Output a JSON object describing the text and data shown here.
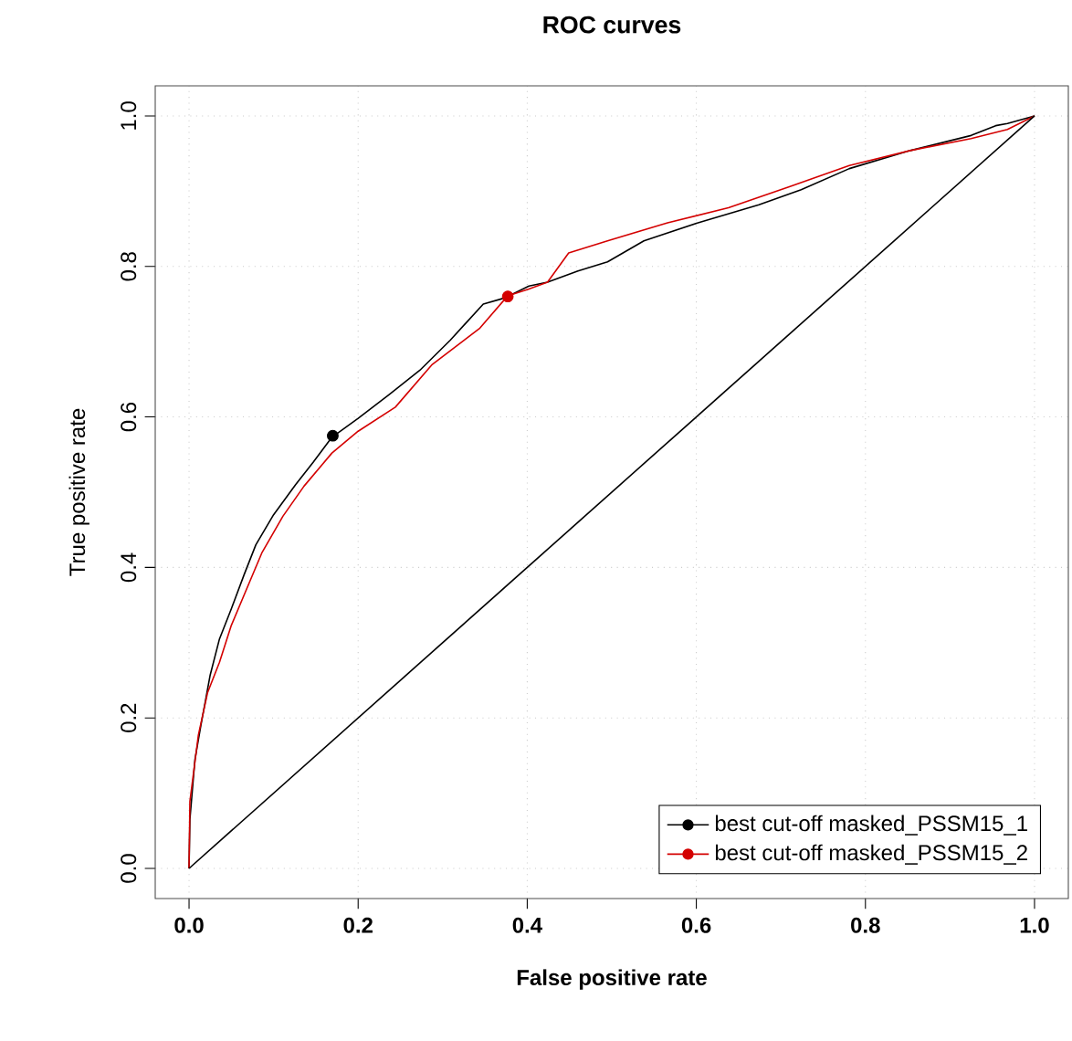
{
  "chart_data": {
    "type": "line",
    "title": "ROC curves",
    "xlabel": "False positive rate",
    "ylabel": "True positive rate",
    "xlim": [
      -0.04,
      1.04
    ],
    "ylim": [
      -0.04,
      1.04
    ],
    "xticks": [
      {
        "value": 0,
        "label": "0.0"
      },
      {
        "value": 0.2,
        "label": "0.2"
      },
      {
        "value": 0.4,
        "label": "0.4"
      },
      {
        "value": 0.6,
        "label": "0.6"
      },
      {
        "value": 0.8,
        "label": "0.8"
      },
      {
        "value": 1,
        "label": "1.0"
      }
    ],
    "yticks": [
      {
        "value": 0,
        "label": "0.0"
      },
      {
        "value": 0.2,
        "label": "0.2"
      },
      {
        "value": 0.4,
        "label": "0.4"
      },
      {
        "value": 0.6,
        "label": "0.6"
      },
      {
        "value": 0.8,
        "label": "0.8"
      },
      {
        "value": 1,
        "label": "1.0"
      }
    ],
    "grid": true,
    "legend": "bottom right",
    "marker": "none",
    "line_style": "solid",
    "series": [
      {
        "name": "best cut-off masked_PSSM15_1",
        "color": "#000000",
        "x": [
          0,
          0.001,
          0.007,
          0.014,
          0.025,
          0.036,
          0.05,
          0.065,
          0.079,
          0.1,
          0.126,
          0.147,
          0.169,
          0.2,
          0.237,
          0.273,
          0.309,
          0.348,
          0.373,
          0.402,
          0.424,
          0.46,
          0.495,
          0.538,
          0.602,
          0.674,
          0.724,
          0.781,
          0.853,
          0.925,
          0.954,
          0.968,
          1
        ],
        "values": [
          0,
          0.065,
          0.145,
          0.19,
          0.257,
          0.305,
          0.345,
          0.39,
          0.43,
          0.47,
          0.51,
          0.54,
          0.573,
          0.598,
          0.63,
          0.662,
          0.702,
          0.75,
          0.758,
          0.774,
          0.779,
          0.794,
          0.806,
          0.834,
          0.858,
          0.882,
          0.902,
          0.93,
          0.954,
          0.974,
          0.987,
          0.99,
          1
        ]
      },
      {
        "name": "best cut-off masked_PSSM15_2",
        "color": "#d40000",
        "x": [
          0,
          0.001,
          0.011,
          0.022,
          0.036,
          0.05,
          0.068,
          0.086,
          0.111,
          0.136,
          0.169,
          0.2,
          0.244,
          0.287,
          0.344,
          0.377,
          0.402,
          0.424,
          0.449,
          0.495,
          0.566,
          0.638,
          0.71,
          0.781,
          0.853,
          0.925,
          0.968,
          1
        ],
        "values": [
          0,
          0.089,
          0.177,
          0.234,
          0.274,
          0.323,
          0.371,
          0.419,
          0.468,
          0.508,
          0.552,
          0.581,
          0.613,
          0.669,
          0.718,
          0.761,
          0.77,
          0.779,
          0.818,
          0.834,
          0.858,
          0.878,
          0.906,
          0.934,
          0.954,
          0.97,
          0.982,
          1
        ]
      },
      {
        "type": "line",
        "color": "#000000",
        "x": [
          0,
          1
        ],
        "values": [
          0,
          1
        ]
      },
      {
        "type": "scatter",
        "color": "#000000",
        "marker": "circle",
        "x": [
          0.17
        ],
        "values": [
          0.575
        ]
      },
      {
        "type": "scatter",
        "color": "#d40000",
        "marker": "circle",
        "x": [
          0.377
        ],
        "values": [
          0.76
        ]
      }
    ]
  }
}
